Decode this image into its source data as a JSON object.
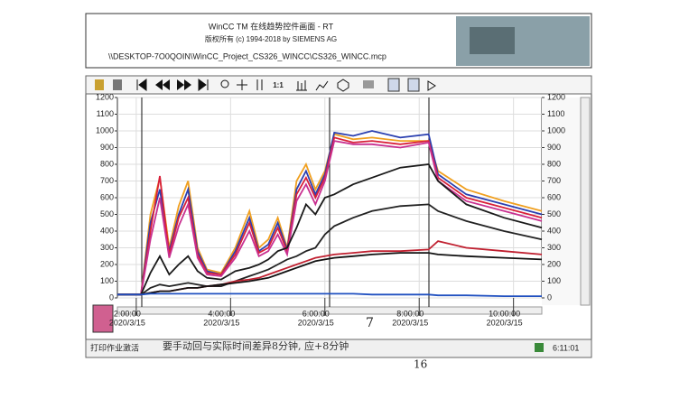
{
  "header": {
    "title": "WinCC TM 在线趋势控件画面 - RT",
    "copyright": "版权所有 (c) 1994-2018 by SIEMENS AG",
    "path": "\\\\DESKTOP-7O0QOIN\\WinCC_Project_CS326_WINCC\\CS326_WINCC.mcp"
  },
  "toolbar": {
    "zoom_label": "1:1"
  },
  "status": {
    "job": "打印作业激活",
    "time": "6:11:01"
  },
  "annotations": [
    "要手动回与实际时间差异8分钟, 应+8分钟",
    "7",
    "16"
  ],
  "chart_data": {
    "type": "line",
    "x": [
      1.6,
      2.1,
      2.3,
      2.5,
      2.7,
      2.9,
      3.1,
      3.3,
      3.5,
      3.8,
      4.1,
      4.4,
      4.6,
      4.8,
      5.0,
      5.2,
      5.4,
      5.6,
      5.8,
      6.0,
      6.2,
      6.6,
      7.0,
      7.6,
      8.2,
      8.4,
      9.0,
      9.8,
      10.6
    ],
    "xlim": [
      1.6,
      10.6
    ],
    "xticks": [
      {
        "value": 2,
        "label": "2:00:00"
      },
      {
        "value": 4,
        "label": "4:00:00"
      },
      {
        "value": 6,
        "label": "6:00:00"
      },
      {
        "value": 8,
        "label": "8:00:00"
      },
      {
        "value": 10,
        "label": "10:00:00"
      }
    ],
    "xtick_dates": [
      "2020/3/15",
      "2020/3/15",
      "2020/3/15",
      "2020/3/15",
      "2020/3/15"
    ],
    "ylim": [
      0,
      1200
    ],
    "yticks": [
      0,
      100,
      200,
      300,
      400,
      500,
      600,
      700,
      800,
      900,
      1000,
      1100,
      1200
    ],
    "y2lim": [
      0,
      1200
    ],
    "y2ticks": [
      0,
      100,
      200,
      300,
      400,
      500,
      600,
      700,
      800,
      900,
      1000,
      1100,
      1200
    ],
    "grid": true,
    "series": [
      {
        "color": "#f0a020",
        "values": [
          20,
          20,
          500,
          720,
          300,
          550,
          700,
          300,
          170,
          150,
          300,
          520,
          300,
          350,
          480,
          300,
          700,
          800,
          650,
          760,
          980,
          950,
          960,
          940,
          940,
          760,
          650,
          580,
          520
        ]
      },
      {
        "color": "#2a3fb0",
        "values": [
          20,
          20,
          450,
          650,
          280,
          500,
          650,
          280,
          160,
          140,
          280,
          480,
          280,
          320,
          450,
          290,
          650,
          760,
          620,
          740,
          990,
          970,
          1000,
          960,
          980,
          740,
          620,
          560,
          500
        ]
      },
      {
        "color": "#d8203a",
        "values": [
          20,
          20,
          400,
          730,
          260,
          480,
          600,
          260,
          150,
          140,
          260,
          450,
          270,
          300,
          420,
          280,
          620,
          720,
          600,
          720,
          960,
          930,
          940,
          920,
          940,
          720,
          600,
          540,
          480
        ]
      },
      {
        "color": "#c83090",
        "values": [
          20,
          20,
          350,
          600,
          240,
          430,
          560,
          240,
          140,
          130,
          240,
          400,
          250,
          280,
          380,
          260,
          580,
          680,
          560,
          700,
          940,
          920,
          920,
          900,
          930,
          700,
          580,
          520,
          460
        ]
      },
      {
        "color": "#1a1a1a",
        "values": [
          20,
          20,
          150,
          250,
          140,
          200,
          250,
          160,
          120,
          110,
          160,
          180,
          200,
          230,
          280,
          300,
          420,
          560,
          500,
          600,
          620,
          680,
          720,
          780,
          800,
          700,
          560,
          480,
          420
        ]
      },
      {
        "color": "#222222",
        "values": [
          20,
          20,
          60,
          80,
          70,
          80,
          90,
          80,
          70,
          70,
          100,
          130,
          150,
          170,
          200,
          230,
          250,
          280,
          300,
          380,
          430,
          480,
          520,
          550,
          560,
          520,
          460,
          400,
          350
        ]
      },
      {
        "color": "#c02030",
        "values": [
          20,
          20,
          30,
          40,
          40,
          50,
          60,
          60,
          70,
          80,
          100,
          110,
          120,
          140,
          160,
          180,
          200,
          220,
          240,
          250,
          260,
          270,
          280,
          280,
          290,
          340,
          300,
          280,
          260
        ]
      },
      {
        "color": "#111111",
        "values": [
          20,
          20,
          30,
          40,
          40,
          50,
          60,
          60,
          70,
          80,
          90,
          100,
          110,
          120,
          140,
          160,
          180,
          200,
          220,
          230,
          240,
          250,
          260,
          270,
          270,
          260,
          250,
          240,
          230
        ]
      },
      {
        "color": "#2050c0",
        "values": [
          20,
          20,
          25,
          25,
          25,
          25,
          25,
          25,
          25,
          25,
          25,
          25,
          25,
          25,
          25,
          25,
          25,
          25,
          25,
          25,
          25,
          25,
          20,
          20,
          20,
          15,
          15,
          10,
          10
        ]
      }
    ]
  }
}
